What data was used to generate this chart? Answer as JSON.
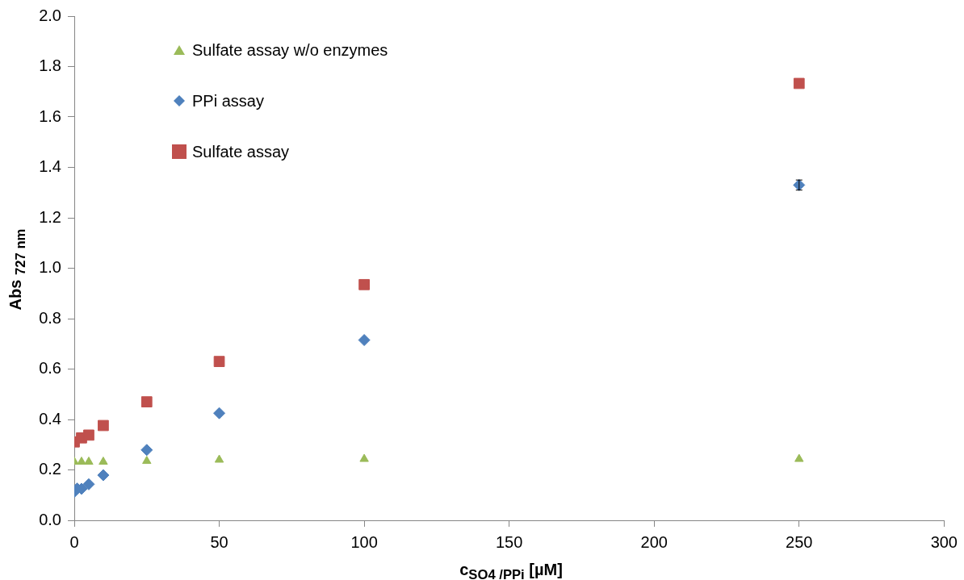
{
  "chart_data": {
    "type": "scatter",
    "xlabel": "c$_{SO4 /PPi}$ [µM]",
    "ylabel": "Abs $_{727 nm}$",
    "xlim": [
      0,
      300
    ],
    "xticks": [
      0,
      50,
      100,
      150,
      200,
      250,
      300
    ],
    "ylim": [
      0,
      2
    ],
    "yticks": [
      {
        "value": 0,
        "label": "0.0"
      },
      {
        "value": 0.2,
        "label": "0.2"
      },
      {
        "value": 0.4,
        "label": "0.4"
      },
      {
        "value": 0.6,
        "label": "0.6"
      },
      {
        "value": 0.8,
        "label": "0.8"
      },
      {
        "value": 1,
        "label": "1.0"
      },
      {
        "value": 1.2,
        "label": "1.2"
      },
      {
        "value": 1.4,
        "label": "1.4"
      },
      {
        "value": 1.6,
        "label": "1.6"
      },
      {
        "value": 1.8,
        "label": "1.8"
      },
      {
        "value": 2,
        "label": "2.0"
      }
    ],
    "grid": false,
    "legend": "top left",
    "series": [
      {
        "name": "Sulfate assay w/o enzymes",
        "color": "#9bbb59",
        "marker": "triangle",
        "x": [
          0,
          2.5,
          5,
          10,
          25,
          50,
          100,
          250
        ],
        "values": [
          0.232,
          0.232,
          0.232,
          0.232,
          0.235,
          0.24,
          0.243,
          0.243
        ]
      },
      {
        "name": "PPi assay",
        "color": "#4f81bd",
        "marker": "diamond",
        "x": [
          0,
          1,
          2.5,
          5,
          10,
          25,
          50,
          100,
          250
        ],
        "values": [
          0.113,
          0.126,
          0.125,
          0.143,
          0.179,
          0.279,
          0.425,
          0.715,
          1.33
        ],
        "errors": [
          null,
          null,
          null,
          null,
          null,
          null,
          null,
          null,
          0.02
        ]
      },
      {
        "name": "Sulfate assay",
        "color": "#c0504d",
        "marker": "square",
        "x": [
          0,
          2.5,
          5,
          10,
          25,
          50,
          100,
          250
        ],
        "values": [
          0.311,
          0.327,
          0.338,
          0.376,
          0.47,
          0.63,
          0.935,
          1.733
        ]
      }
    ]
  }
}
